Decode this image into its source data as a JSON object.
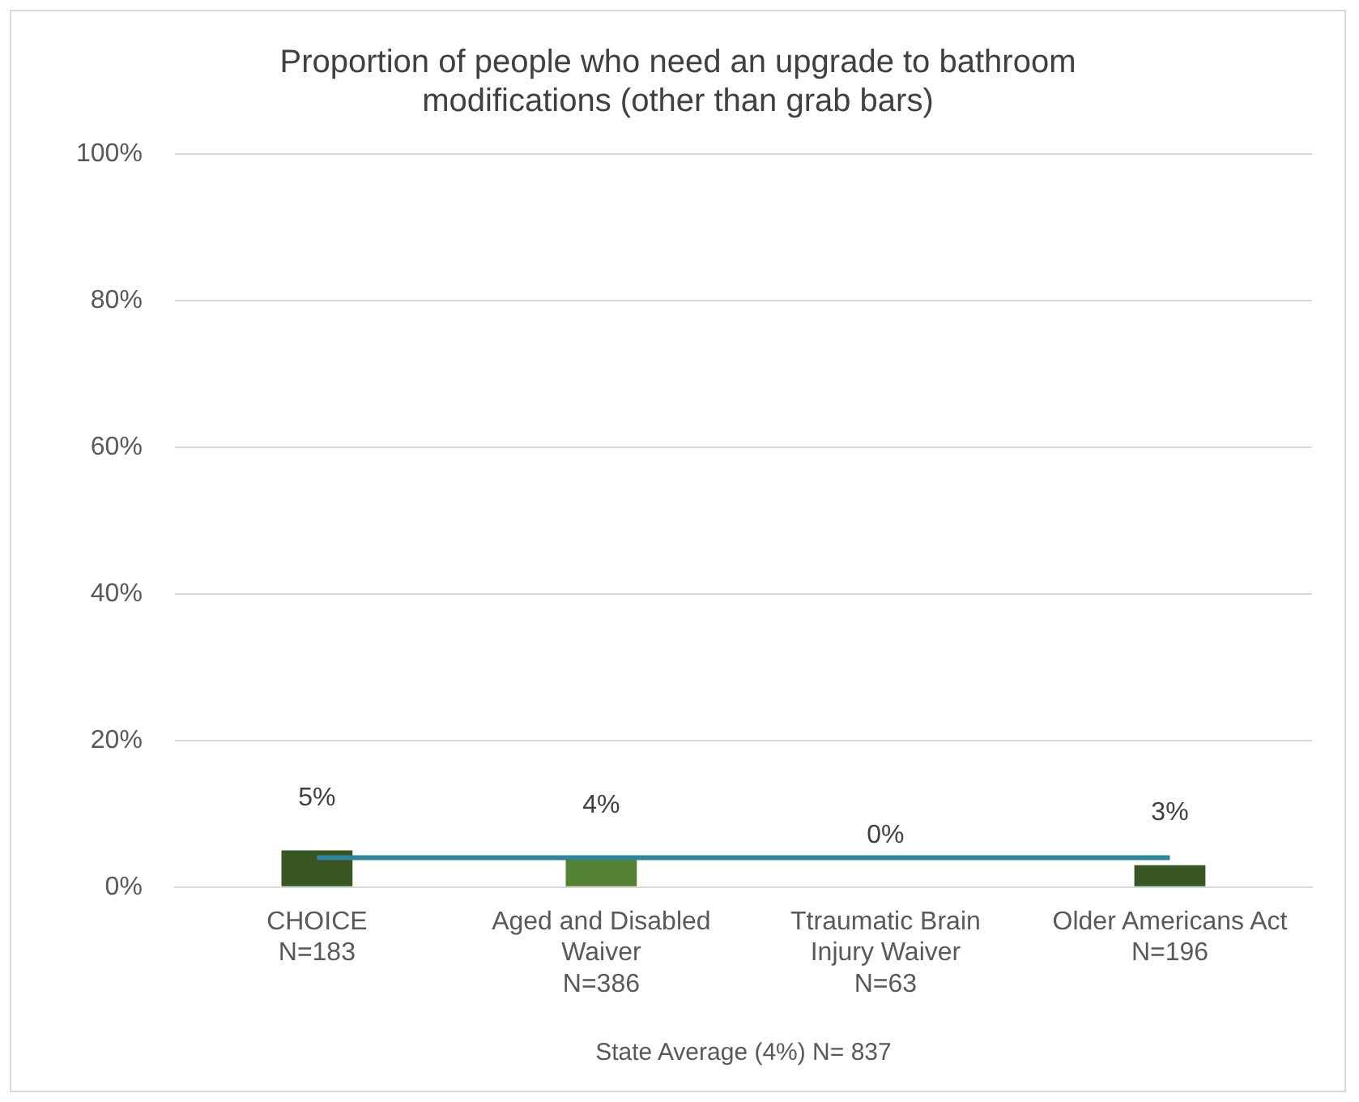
{
  "chart_data": {
    "type": "bar",
    "title": "Proportion of people who need an upgrade to bathroom\nmodifications (other than grab bars)",
    "xlabel": "State Average (4%) N= 837",
    "categories": [
      "CHOICE\nN=183",
      "Aged and Disabled\nWaiver\nN=386",
      "Ttraumatic Brain\nInjury Waiver\nN=63",
      "Older Americans Act\nN=196"
    ],
    "series": [
      {
        "colors": [
          "#375623",
          "#548235",
          "#375623",
          "#375623"
        ],
        "values": [
          5,
          4,
          0,
          3
        ],
        "value_labels": [
          "5%",
          "4%",
          "0%",
          "3%"
        ]
      },
      {
        "type": "line",
        "color": "#31849b",
        "values": [
          4,
          4,
          4,
          4
        ],
        "marker": "none"
      }
    ],
    "ylim": [
      0,
      100
    ],
    "yticks": [
      {
        "value": 0,
        "label": "0%"
      },
      {
        "value": 20,
        "label": "20%"
      },
      {
        "value": 40,
        "label": "40%"
      },
      {
        "value": 60,
        "label": "60%"
      },
      {
        "value": 80,
        "label": "80%"
      },
      {
        "value": 100,
        "label": "100%"
      }
    ],
    "grid": "y",
    "legend": false
  }
}
